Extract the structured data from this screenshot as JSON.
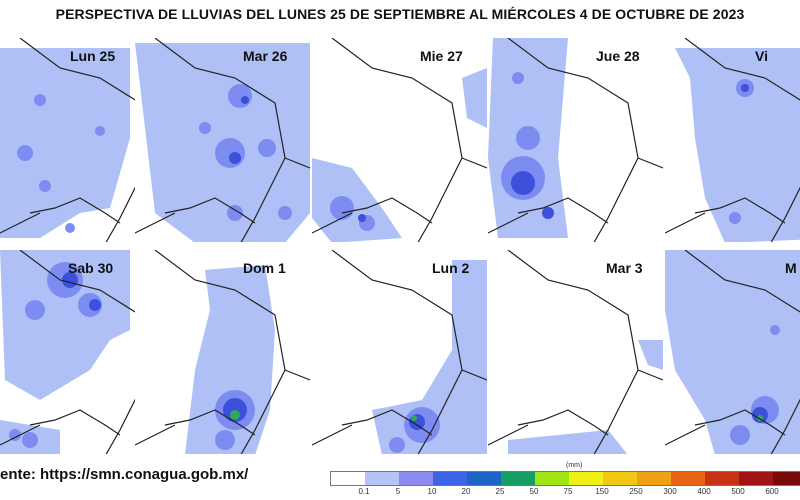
{
  "title": "PERSPECTIVA DE LLUVIAS DEL LUNES 25 DE SEPTIEMBRE AL MIÉRCOLES 4 DE OCTUBRE DE 2023",
  "source": "ente: https://smn.conagua.gob.mx/",
  "panels": [
    {
      "label": "Lun 25"
    },
    {
      "label": "Mar 26"
    },
    {
      "label": "Mie 27"
    },
    {
      "label": "Jue 28"
    },
    {
      "label": "Vi"
    },
    {
      "label": "Sab 30"
    },
    {
      "label": "Dom 1"
    },
    {
      "label": "Lun 2"
    },
    {
      "label": "Mar 3"
    },
    {
      "label": "M"
    }
  ],
  "legend": {
    "unit": "(mm)",
    "ticks": [
      "0.1",
      "5",
      "10",
      "20",
      "25",
      "50",
      "75",
      "150",
      "250",
      "300",
      "400",
      "500",
      "600"
    ],
    "colors": [
      "#ffffff",
      "#b4c4f4",
      "#8c8cf0",
      "#3c64e6",
      "#1e64c8",
      "#14a064",
      "#a0e614",
      "#f0f014",
      "#f0c814",
      "#f0a014",
      "#e66414",
      "#c83214",
      "#a01414",
      "#780a0a"
    ]
  },
  "map_colors": {
    "light": "#aec0f5",
    "medium": "#7d8cf0",
    "dark": "#3c50dc",
    "green": "#2eaa5a",
    "border": "#222222"
  }
}
